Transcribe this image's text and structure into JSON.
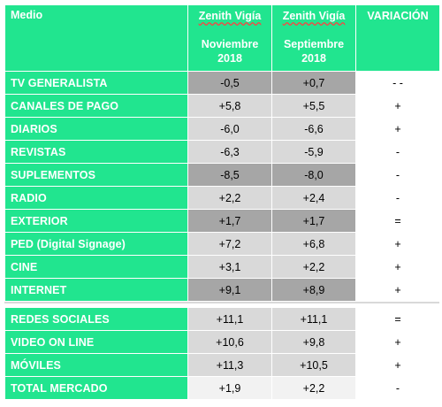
{
  "header": {
    "medio": "Medio",
    "col1_title": "Zenith Vigía",
    "col1_period": "Noviembre",
    "col1_year": "2018",
    "col2_title": "Zenith Vigía",
    "col2_period": "Septiembre",
    "col2_year": "2018",
    "col3_title": "VARIACIÓN"
  },
  "rows": [
    {
      "medio": "TV GENERALISTA",
      "nov": "-0,5",
      "sep": "+0,7",
      "var": "- -"
    },
    {
      "medio": "CANALES DE PAGO",
      "nov": "+5,8",
      "sep": "+5,5",
      "var": "+"
    },
    {
      "medio": "DIARIOS",
      "nov": "-6,0",
      "sep": "-6,6",
      "var": "+"
    },
    {
      "medio": "REVISTAS",
      "nov": "-6,3",
      "sep": "-5,9",
      "var": "-"
    },
    {
      "medio": "SUPLEMENTOS",
      "nov": "-8,5",
      "sep": "-8,0",
      "var": "-"
    },
    {
      "medio": "RADIO",
      "nov": "+2,2",
      "sep": "+2,4",
      "var": "-"
    },
    {
      "medio": "EXTERIOR",
      "nov": "+1,7",
      "sep": "+1,7",
      "var": "="
    },
    {
      "medio": "PED (Digital Signage)",
      "nov": "+7,2",
      "sep": "+6,8",
      "var": "+"
    },
    {
      "medio": "CINE",
      "nov": "+3,1",
      "sep": "+2,2",
      "var": "+"
    },
    {
      "medio": "INTERNET",
      "nov": "+9,1",
      "sep": "+8,9",
      "var": "+"
    }
  ],
  "rows2": [
    {
      "medio": "REDES SOCIALES",
      "nov": "+11,1",
      "sep": "+11,1",
      "var": "="
    },
    {
      "medio": "VIDEO ON LINE",
      "nov": "+10,6",
      "sep": "+9,8",
      "var": "+"
    },
    {
      "medio": "MÓVILES",
      "nov": "+11,3",
      "sep": "+10,5",
      "var": "+"
    },
    {
      "medio": "TOTAL MERCADO",
      "nov": "+1,9",
      "sep": "+2,2",
      "var": "-"
    }
  ]
}
